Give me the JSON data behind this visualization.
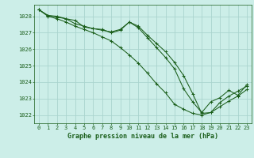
{
  "title": "Graphe pression niveau de la mer (hPa)",
  "background_color": "#cceee8",
  "grid_color": "#aad4ce",
  "line_color": "#1a5e1a",
  "x_ticks": [
    0,
    1,
    2,
    3,
    4,
    5,
    6,
    7,
    8,
    9,
    10,
    11,
    12,
    13,
    14,
    15,
    16,
    17,
    18,
    19,
    20,
    21,
    22,
    23
  ],
  "ylim": [
    1021.5,
    1028.7
  ],
  "y_ticks": [
    1022,
    1023,
    1024,
    1025,
    1026,
    1027,
    1028
  ],
  "series": [
    [
      1028.4,
      1028.05,
      1028.0,
      1027.85,
      1027.75,
      1027.35,
      1027.25,
      1027.15,
      1027.05,
      1027.2,
      1027.65,
      1027.3,
      1026.7,
      1026.1,
      1025.5,
      1024.8,
      1023.6,
      1022.8,
      1022.15,
      1022.8,
      1023.05,
      1023.5,
      1023.2,
      1023.85
    ],
    [
      1028.4,
      1028.0,
      1027.85,
      1027.65,
      1027.4,
      1027.2,
      1027.0,
      1026.75,
      1026.5,
      1026.1,
      1025.65,
      1025.15,
      1024.55,
      1023.9,
      1023.35,
      1022.65,
      1022.35,
      1022.1,
      1022.0,
      1022.15,
      1022.5,
      1022.85,
      1023.15,
      1023.55
    ],
    [
      1028.4,
      1028.05,
      1027.95,
      1027.85,
      1027.55,
      1027.4,
      1027.25,
      1027.2,
      1027.0,
      1027.15,
      1027.65,
      1027.4,
      1026.85,
      1026.35,
      1025.85,
      1025.2,
      1024.4,
      1023.3,
      1022.1,
      1022.15,
      1022.75,
      1023.15,
      1023.45,
      1023.75
    ]
  ]
}
